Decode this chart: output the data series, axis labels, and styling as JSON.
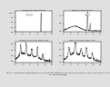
{
  "figure_title": "Figure 13 - Comparison of LaBr3(Ce) and NaI(Tl) scintillators",
  "caption": "Figure 13 - Comparison of LaBr3(Ce) and NaI(Tl) scintillators with dimensions of 7.62 cm x 7.62 cm (ortho-cylinder) and 12.7 cm x 12.7 cm x 25.7 cm (parallelepiped).",
  "panel_titles": [
    "LaBr3(Ce) 7.62x7.62 cm",
    "NaI(Tl) 7.62x7.62 cm",
    "LaBr3(Ce) 12.7x12.7x25.7 cm",
    "NaI(Tl) 12.7x12.7x25.7 cm"
  ],
  "bg_color": "#e0e0e0",
  "plot_bg": "#ffffff",
  "line_color": "#333333"
}
